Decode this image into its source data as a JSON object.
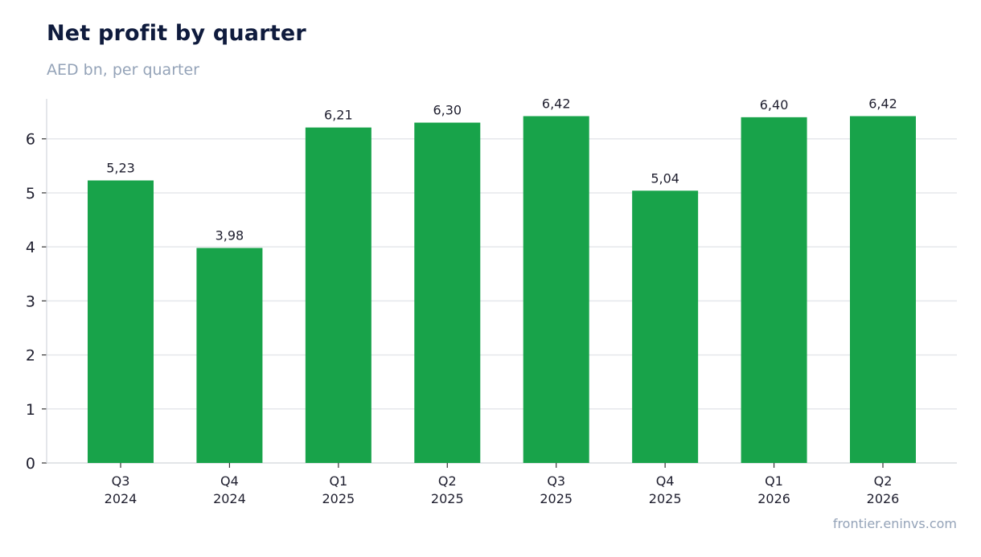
{
  "header": {
    "title": "Net profit by quarter",
    "subtitle": "AED bn, per quarter"
  },
  "footer": {
    "source": "frontier.eninvs.com"
  },
  "colors": {
    "bar": "#18a34a",
    "grid": "#e5e7eb",
    "axis": "#d1d5db",
    "title": "#0f1b3d",
    "muted": "#94a3b8"
  },
  "chart_data": {
    "type": "bar",
    "title": "Net profit by quarter",
    "subtitle": "AED bn, per quarter",
    "categories": [
      [
        "Q3",
        "2024"
      ],
      [
        "Q4",
        "2024"
      ],
      [
        "Q1",
        "2025"
      ],
      [
        "Q2",
        "2025"
      ],
      [
        "Q3",
        "2025"
      ],
      [
        "Q4",
        "2025"
      ],
      [
        "Q1",
        "2026"
      ],
      [
        "Q2",
        "2026"
      ]
    ],
    "values": [
      5.23,
      3.98,
      6.21,
      6.3,
      6.42,
      5.04,
      6.4,
      6.42
    ],
    "value_labels": [
      "5,23",
      "3,98",
      "6,21",
      "6,30",
      "6,42",
      "5,04",
      "6,40",
      "6,42"
    ],
    "yticks": [
      0,
      1,
      2,
      3,
      4,
      5,
      6
    ],
    "ylim": [
      0,
      6.74
    ],
    "grid": true,
    "legend": "none"
  }
}
